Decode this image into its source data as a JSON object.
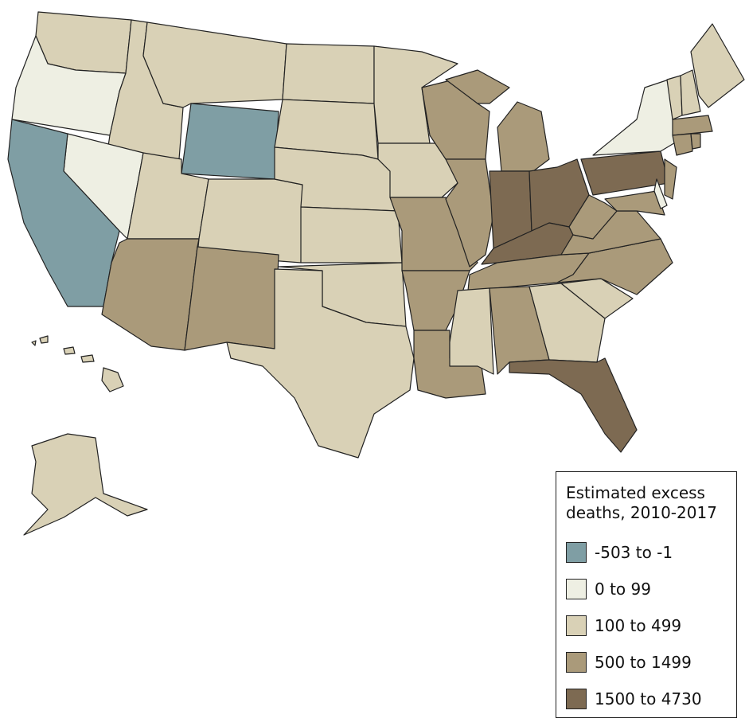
{
  "legend": {
    "title": "Estimated excess deaths, 2010-2017",
    "items": [
      {
        "label": "-503 to -1",
        "color": "#7f9ea4"
      },
      {
        "label": "0 to 99",
        "color": "#eeefe3"
      },
      {
        "label": "100 to 499",
        "color": "#d9d1b6"
      },
      {
        "label": "500 to 1499",
        "color": "#aa9a7a"
      },
      {
        "label": "1500 to 4730",
        "color": "#7d6a52"
      }
    ]
  }
}
